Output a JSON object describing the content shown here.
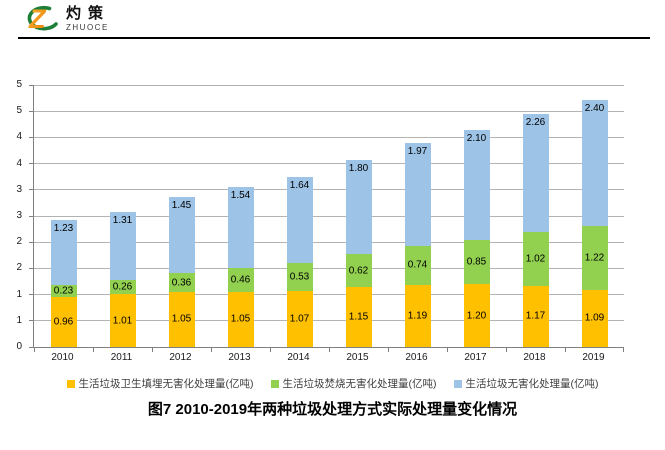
{
  "header": {
    "brand": "灼策",
    "brand_sub": "ZHUOCE"
  },
  "chart_data": {
    "type": "bar",
    "stacked": true,
    "title": "图7  2010-2019年两种垃圾处理方式实际处理量变化情况",
    "categories": [
      "2010",
      "2011",
      "2012",
      "2013",
      "2014",
      "2015",
      "2016",
      "2017",
      "2018",
      "2019"
    ],
    "series": [
      {
        "name": "生活垃圾卫生填埋无害化处理量(亿吨)",
        "color": "#FFC000",
        "label_position": "center",
        "values": [
          0.96,
          1.01,
          1.05,
          1.05,
          1.07,
          1.15,
          1.19,
          1.2,
          1.17,
          1.09
        ]
      },
      {
        "name": "生活垃圾焚烧无害化处理量(亿吨)",
        "color": "#92D050",
        "label_position": "center",
        "values": [
          0.23,
          0.26,
          0.36,
          0.46,
          0.53,
          0.62,
          0.74,
          0.85,
          1.02,
          1.22
        ]
      },
      {
        "name": "生活垃圾无害化处理量(亿吨)",
        "color": "#9DC3E6",
        "label_position": "inside-end",
        "values": [
          1.23,
          1.31,
          1.45,
          1.54,
          1.64,
          1.8,
          1.97,
          2.1,
          2.26,
          2.4
        ]
      }
    ],
    "yaxis": {
      "min": 0,
      "max": 5,
      "step": 0.5,
      "tick_labels_bottom_to_top": [
        "0",
        "1",
        "1",
        "2",
        "2",
        "3",
        "3",
        "4",
        "4",
        "5",
        "5"
      ]
    },
    "xlabel": "",
    "ylabel": "",
    "grid": true,
    "legend_position": "bottom"
  }
}
